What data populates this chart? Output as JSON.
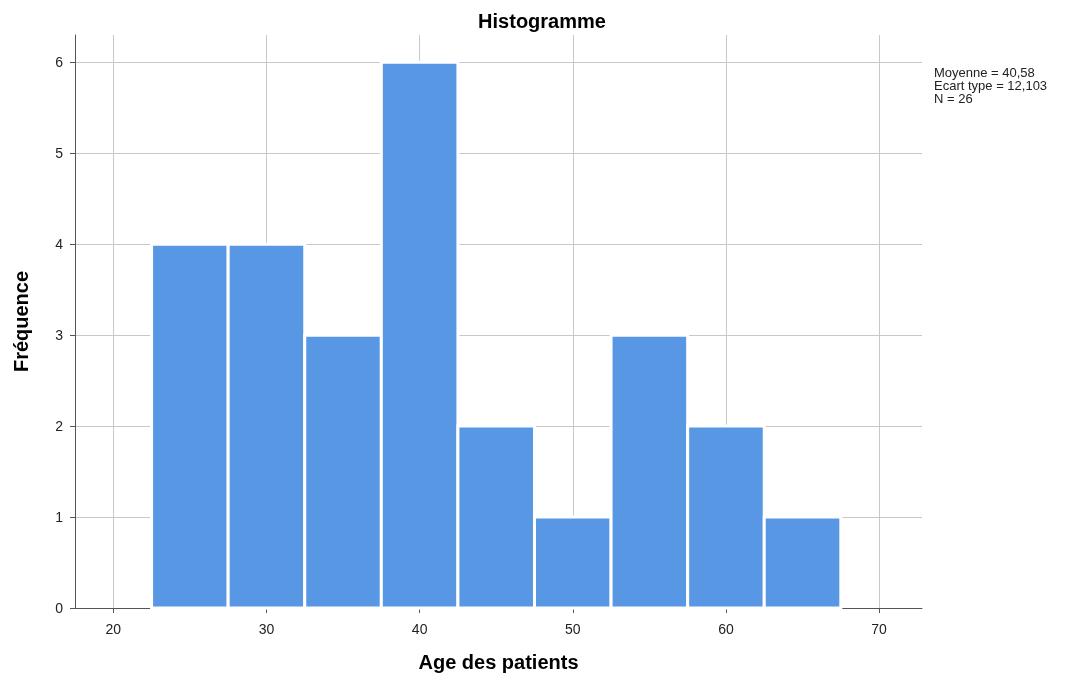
{
  "chart_data": {
    "type": "histogram",
    "title": "Histogramme",
    "xlabel": "Age des patients",
    "ylabel": "Fréquence",
    "bins": [
      22.5,
      27.5,
      32.5,
      37.5,
      42.5,
      47.5,
      52.5,
      57.5,
      62.5,
      67.5
    ],
    "values": [
      4,
      4,
      3,
      6,
      2,
      1,
      3,
      2,
      1
    ],
    "color": "#5897e4",
    "xlim": [
      17.5,
      72.8
    ],
    "xticks": [
      20,
      30,
      40,
      50,
      60,
      70
    ],
    "ylim": [
      0,
      6.3
    ],
    "yticks": [
      0,
      1,
      2,
      3,
      4,
      5,
      6
    ],
    "grid": true,
    "annotations": [
      "Moyenne = 40,58",
      "Ecart type = 12,103",
      "N = 26"
    ]
  }
}
